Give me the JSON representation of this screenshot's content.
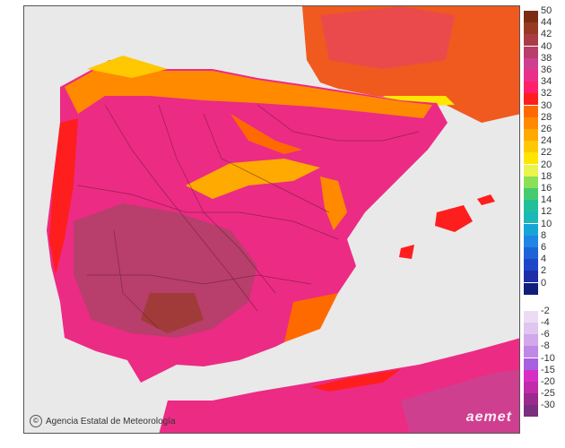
{
  "credit": "Agencia Estatal de Meteorología",
  "logo": "aemet",
  "legend": {
    "top": [
      {
        "label": "50",
        "color": "#7b2c14"
      },
      {
        "label": "44",
        "color": "#973a24"
      },
      {
        "label": "42",
        "color": "#a93d45"
      },
      {
        "label": "40",
        "color": "#b83e6c"
      },
      {
        "label": "38",
        "color": "#cf3f8f"
      },
      {
        "label": "36",
        "color": "#ea2f88"
      },
      {
        "label": "34",
        "color": "#ff1f6a"
      },
      {
        "label": "32",
        "color": "#ff1e1e"
      },
      {
        "label": "30",
        "color": "#ff6a00"
      },
      {
        "label": "28",
        "color": "#ff8a00"
      },
      {
        "label": "26",
        "color": "#ffaa00"
      },
      {
        "label": "24",
        "color": "#ffc800"
      },
      {
        "label": "22",
        "color": "#ffe500"
      },
      {
        "label": "20",
        "color": "#e9f54a"
      },
      {
        "label": "18",
        "color": "#8be057"
      },
      {
        "label": "16",
        "color": "#45cc6f"
      },
      {
        "label": "14",
        "color": "#22c099"
      },
      {
        "label": "12",
        "color": "#1bb8b8"
      },
      {
        "label": "10",
        "color": "#17a5d8"
      },
      {
        "label": "8",
        "color": "#1f86e6"
      },
      {
        "label": "6",
        "color": "#1f63d8"
      },
      {
        "label": "4",
        "color": "#1f45c8"
      },
      {
        "label": "2",
        "color": "#1e2ea8"
      },
      {
        "label": "0",
        "color": "#111e7a"
      }
    ],
    "bottom": [
      {
        "label": "-2",
        "color": "#ecdcf3"
      },
      {
        "label": "-4",
        "color": "#e0c6ee"
      },
      {
        "label": "-6",
        "color": "#d2a8ea"
      },
      {
        "label": "-8",
        "color": "#bf87e6"
      },
      {
        "label": "-10",
        "color": "#a760e0"
      },
      {
        "label": "-15",
        "color": "#d82ec5"
      },
      {
        "label": "-20",
        "color": "#c12aa8"
      },
      {
        "label": "-25",
        "color": "#9a2a8e"
      },
      {
        "label": "-30",
        "color": "#7b2e7e"
      }
    ]
  }
}
